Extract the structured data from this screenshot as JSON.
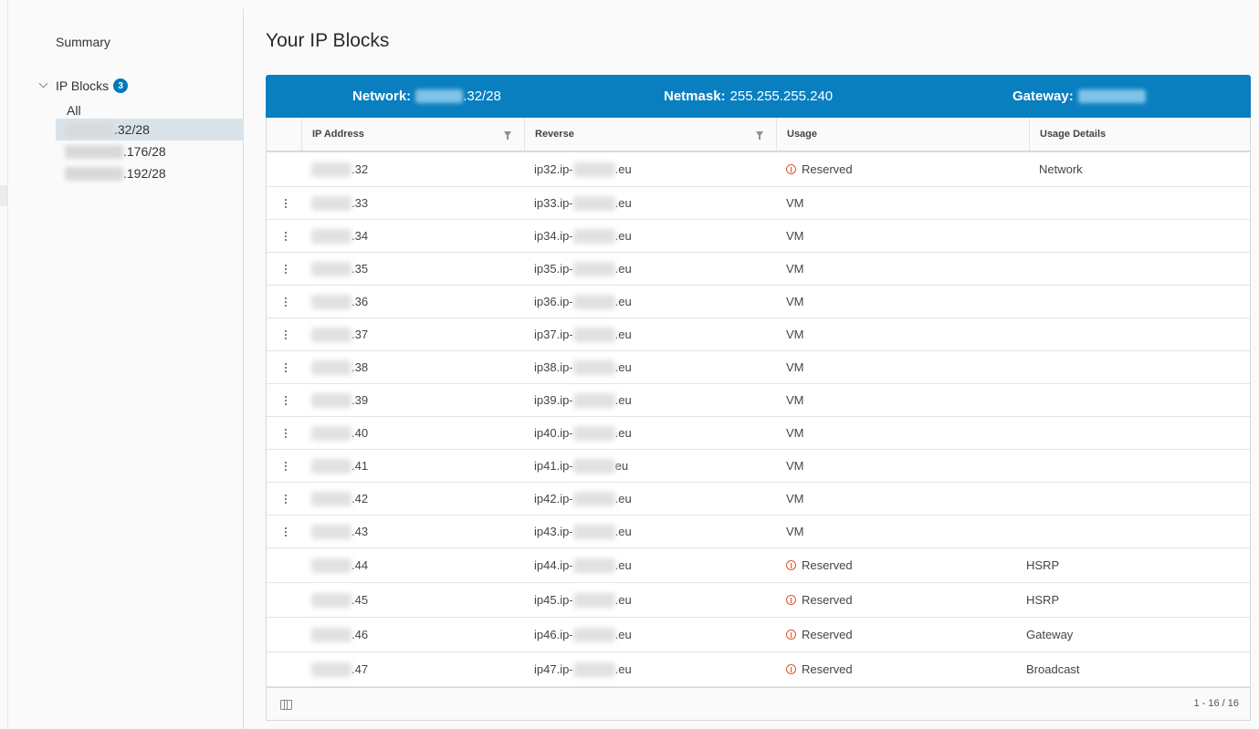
{
  "sidebar": {
    "summary_label": "Summary",
    "ip_blocks_label": "IP Blocks",
    "ip_blocks_count": "3",
    "items": [
      {
        "label": "All"
      },
      {
        "suffix": ".32/28",
        "active": true
      },
      {
        "suffix": ".176/28"
      },
      {
        "suffix": ".192/28"
      }
    ]
  },
  "main": {
    "title": "Your IP Blocks",
    "info": {
      "network_label": "Network:",
      "network_suffix": ".32/28",
      "netmask_label": "Netmask:",
      "netmask_value": "255.255.255.240",
      "gateway_label": "Gateway:"
    },
    "columns": {
      "ip": "IP Address",
      "reverse": "Reverse",
      "usage": "Usage",
      "details": "Usage Details"
    },
    "rows": [
      {
        "ip_suffix": ".32",
        "rev_prefix": "ip32.ip-",
        "rev_suffix": ".eu",
        "usage": "Reserved",
        "reserved": true,
        "details": "Network",
        "actions": false
      },
      {
        "ip_suffix": ".33",
        "rev_prefix": "ip33.ip-",
        "rev_suffix": ".eu",
        "usage": "VM",
        "reserved": false,
        "details": "",
        "actions": true
      },
      {
        "ip_suffix": ".34",
        "rev_prefix": "ip34.ip-",
        "rev_suffix": ".eu",
        "usage": "VM",
        "reserved": false,
        "details": "",
        "actions": true
      },
      {
        "ip_suffix": ".35",
        "rev_prefix": "ip35.ip-",
        "rev_suffix": ".eu",
        "usage": "VM",
        "reserved": false,
        "details": "",
        "actions": true
      },
      {
        "ip_suffix": ".36",
        "rev_prefix": "ip36.ip-",
        "rev_suffix": ".eu",
        "usage": "VM",
        "reserved": false,
        "details": "",
        "actions": true
      },
      {
        "ip_suffix": ".37",
        "rev_prefix": "ip37.ip-",
        "rev_suffix": ".eu",
        "usage": "VM",
        "reserved": false,
        "details": "",
        "actions": true
      },
      {
        "ip_suffix": ".38",
        "rev_prefix": "ip38.ip-",
        "rev_suffix": ".eu",
        "usage": "VM",
        "reserved": false,
        "details": "",
        "actions": true
      },
      {
        "ip_suffix": ".39",
        "rev_prefix": "ip39.ip-",
        "rev_suffix": ".eu",
        "usage": "VM",
        "reserved": false,
        "details": "",
        "actions": true
      },
      {
        "ip_suffix": ".40",
        "rev_prefix": "ip40.ip-",
        "rev_suffix": ".eu",
        "usage": "VM",
        "reserved": false,
        "details": "",
        "actions": true
      },
      {
        "ip_suffix": ".41",
        "rev_prefix": "ip41.ip-",
        "rev_suffix": "eu",
        "usage": "VM",
        "reserved": false,
        "details": "",
        "actions": true
      },
      {
        "ip_suffix": ".42",
        "rev_prefix": "ip42.ip-",
        "rev_suffix": ".eu",
        "usage": "VM",
        "reserved": false,
        "details": "",
        "actions": true
      },
      {
        "ip_suffix": ".43",
        "rev_prefix": "ip43.ip-",
        "rev_suffix": ".eu",
        "usage": "VM",
        "reserved": false,
        "details": "",
        "actions": true
      },
      {
        "ip_suffix": ".44",
        "rev_prefix": "ip44.ip-",
        "rev_suffix": ".eu",
        "usage": "Reserved",
        "reserved": true,
        "details": "HSRP",
        "actions": false
      },
      {
        "ip_suffix": ".45",
        "rev_prefix": "ip45.ip-",
        "rev_suffix": ".eu",
        "usage": "Reserved",
        "reserved": true,
        "details": "HSRP",
        "actions": false
      },
      {
        "ip_suffix": ".46",
        "rev_prefix": "ip46.ip-",
        "rev_suffix": ".eu",
        "usage": "Reserved",
        "reserved": true,
        "details": "Gateway",
        "actions": false
      },
      {
        "ip_suffix": ".47",
        "rev_prefix": "ip47.ip-",
        "rev_suffix": ".eu",
        "usage": "Reserved",
        "reserved": true,
        "details": "Broadcast",
        "actions": false
      }
    ],
    "pagination": "1 - 16 / 16"
  },
  "colors": {
    "accent": "#0a7fc0",
    "badge": "#0079b8",
    "warning": "#e0532a",
    "active_item": "#d8e3e9"
  }
}
